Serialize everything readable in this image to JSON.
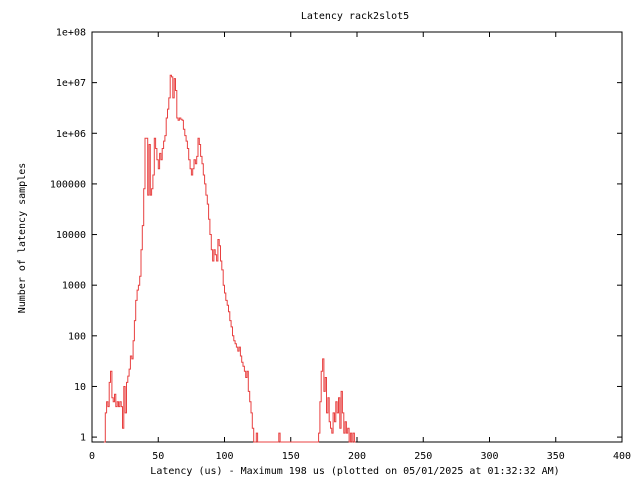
{
  "chart_data": {
    "type": "line",
    "title": "Latency rack2slot5",
    "xlabel": "Latency (us) - Maximum 198 us (plotted on 05/01/2025 at 01:32:32 AM)",
    "ylabel": "Number of latency samples",
    "xlim": [
      0,
      400
    ],
    "ylim": [
      0.8,
      100000000
    ],
    "yscale": "log",
    "grid": false,
    "x_ticks": [
      0,
      50,
      100,
      150,
      200,
      250,
      300,
      350,
      400
    ],
    "x_tick_labels": [
      "0",
      "50",
      "100",
      "150",
      "200",
      "250",
      "300",
      "350",
      "400"
    ],
    "y_ticks": [
      1,
      10,
      100,
      1000,
      10000,
      100000,
      1000000,
      10000000,
      100000000
    ],
    "y_tick_labels": [
      "1",
      "10",
      "100",
      "1000",
      "10000",
      "100000",
      "1e+06",
      "1e+07",
      "1e+08"
    ],
    "series": [
      {
        "color": "#e84040",
        "points": [
          [
            9,
            0.5
          ],
          [
            10,
            3
          ],
          [
            11,
            5
          ],
          [
            12,
            4
          ],
          [
            13,
            12
          ],
          [
            14,
            20
          ],
          [
            15,
            6
          ],
          [
            16,
            5
          ],
          [
            17,
            7
          ],
          [
            18,
            4
          ],
          [
            19,
            5
          ],
          [
            20,
            4
          ],
          [
            21,
            5
          ],
          [
            22,
            4
          ],
          [
            23,
            1.5
          ],
          [
            24,
            10
          ],
          [
            25,
            3
          ],
          [
            26,
            12
          ],
          [
            27,
            16
          ],
          [
            28,
            22
          ],
          [
            29,
            40
          ],
          [
            30,
            35
          ],
          [
            31,
            80
          ],
          [
            32,
            200
          ],
          [
            33,
            500
          ],
          [
            34,
            800
          ],
          [
            35,
            1000
          ],
          [
            36,
            1500
          ],
          [
            37,
            5000
          ],
          [
            38,
            15000
          ],
          [
            39,
            80000
          ],
          [
            40,
            800000
          ],
          [
            41,
            800000
          ],
          [
            42,
            60000
          ],
          [
            43,
            600000
          ],
          [
            44,
            60000
          ],
          [
            45,
            80000
          ],
          [
            46,
            150000
          ],
          [
            47,
            800000
          ],
          [
            48,
            500000
          ],
          [
            49,
            300000
          ],
          [
            50,
            200000
          ],
          [
            51,
            400000
          ],
          [
            52,
            300000
          ],
          [
            53,
            500000
          ],
          [
            54,
            700000
          ],
          [
            55,
            900000
          ],
          [
            56,
            2000000
          ],
          [
            57,
            3000000
          ],
          [
            58,
            5000000
          ],
          [
            59,
            14000000
          ],
          [
            60,
            13000000
          ],
          [
            61,
            5000000
          ],
          [
            62,
            12000000
          ],
          [
            63,
            7000000
          ],
          [
            64,
            2000000
          ],
          [
            65,
            1800000
          ],
          [
            66,
            2000000
          ],
          [
            67,
            1900000
          ],
          [
            68,
            1800000
          ],
          [
            69,
            1200000
          ],
          [
            70,
            900000
          ],
          [
            71,
            700000
          ],
          [
            72,
            500000
          ],
          [
            73,
            300000
          ],
          [
            74,
            200000
          ],
          [
            75,
            150000
          ],
          [
            76,
            200000
          ],
          [
            77,
            300000
          ],
          [
            78,
            250000
          ],
          [
            79,
            350000
          ],
          [
            80,
            800000
          ],
          [
            81,
            600000
          ],
          [
            82,
            350000
          ],
          [
            83,
            250000
          ],
          [
            84,
            150000
          ],
          [
            85,
            100000
          ],
          [
            86,
            60000
          ],
          [
            87,
            40000
          ],
          [
            88,
            20000
          ],
          [
            89,
            10000
          ],
          [
            90,
            5000
          ],
          [
            91,
            3000
          ],
          [
            92,
            5000
          ],
          [
            93,
            4000
          ],
          [
            94,
            3000
          ],
          [
            95,
            8000
          ],
          [
            96,
            6000
          ],
          [
            97,
            3000
          ],
          [
            98,
            2000
          ],
          [
            99,
            1000
          ],
          [
            100,
            700
          ],
          [
            101,
            500
          ],
          [
            102,
            400
          ],
          [
            103,
            300
          ],
          [
            104,
            200
          ],
          [
            105,
            150
          ],
          [
            106,
            100
          ],
          [
            107,
            80
          ],
          [
            108,
            70
          ],
          [
            109,
            60
          ],
          [
            110,
            50
          ],
          [
            111,
            60
          ],
          [
            112,
            40
          ],
          [
            113,
            30
          ],
          [
            114,
            25
          ],
          [
            115,
            20
          ],
          [
            116,
            15
          ],
          [
            117,
            20
          ],
          [
            118,
            8
          ],
          [
            119,
            5
          ],
          [
            120,
            3
          ],
          [
            121,
            1.5
          ],
          [
            122,
            0.5
          ],
          [
            123,
            0.5
          ],
          [
            124,
            1.2
          ],
          [
            125,
            0.5
          ],
          [
            140,
            0.5
          ],
          [
            141,
            1.2
          ],
          [
            142,
            0.5
          ],
          [
            143,
            0.5
          ],
          [
            170,
            0.5
          ],
          [
            171,
            1.2
          ],
          [
            172,
            5
          ],
          [
            173,
            20
          ],
          [
            174,
            35
          ],
          [
            175,
            8
          ],
          [
            176,
            15
          ],
          [
            177,
            3
          ],
          [
            178,
            6
          ],
          [
            179,
            2
          ],
          [
            180,
            1.5
          ],
          [
            181,
            1.2
          ],
          [
            182,
            3
          ],
          [
            183,
            2
          ],
          [
            184,
            5
          ],
          [
            185,
            3
          ],
          [
            186,
            6
          ],
          [
            187,
            1.5
          ],
          [
            188,
            8
          ],
          [
            189,
            3
          ],
          [
            190,
            1.2
          ],
          [
            191,
            2
          ],
          [
            192,
            1.2
          ],
          [
            193,
            1.5
          ],
          [
            194,
            0.5
          ],
          [
            195,
            1.2
          ],
          [
            196,
            0.5
          ],
          [
            197,
            1.2
          ],
          [
            198,
            0.5
          ]
        ]
      }
    ]
  }
}
